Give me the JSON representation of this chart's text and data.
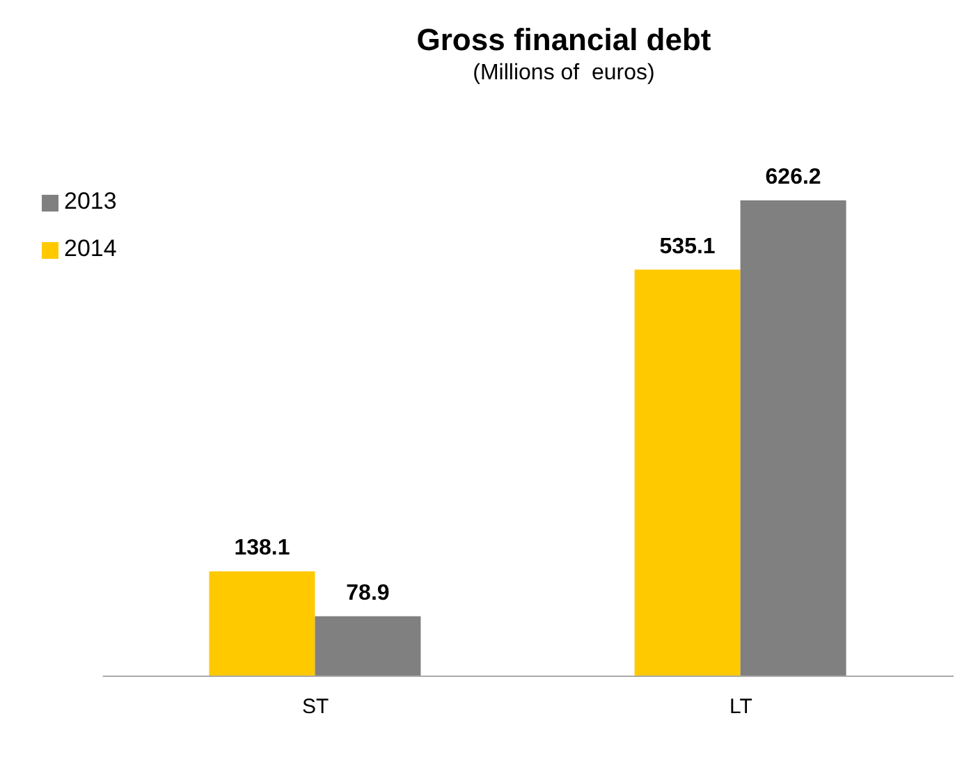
{
  "chart_data": {
    "type": "bar",
    "title": "Gross financial debt",
    "subtitle": "(Millions of  euros)",
    "categories": [
      "ST",
      "LT"
    ],
    "series": [
      {
        "name": "2014",
        "color": "#ffc900",
        "values": [
          138.1,
          535.1
        ]
      },
      {
        "name": "2013",
        "color": "#808080",
        "values": [
          78.9,
          626.2
        ]
      }
    ],
    "data_labels": true,
    "legend": "top left",
    "grid": false
  }
}
